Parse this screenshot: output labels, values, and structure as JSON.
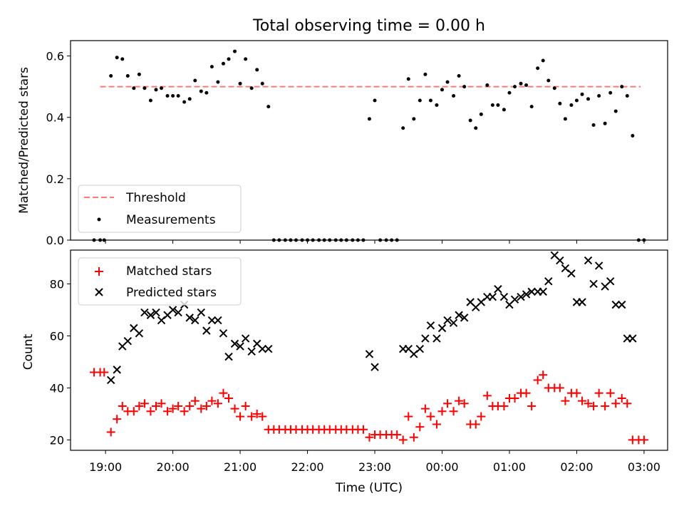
{
  "chart_data": [
    {
      "type": "scatter",
      "title": "Total observing time = 0.00 h",
      "xlabel": "",
      "ylabel": "Matched/Predicted stars",
      "ylim": [
        0,
        0.65
      ],
      "yticks": [
        0.0,
        0.2,
        0.4,
        0.6
      ],
      "ytick_labels": [
        "0.0",
        "0.2",
        "0.4",
        "0.6"
      ],
      "x_range_hours": [
        18.48,
        27.35
      ],
      "x_unit": "hours since 00:00 UTC of start day",
      "threshold": {
        "name": "Threshold",
        "value": 0.5,
        "x_start": 18.92,
        "x_end": 26.95,
        "color": "#ff7777"
      },
      "legend": {
        "placement": "lower left",
        "entries": [
          "Threshold",
          "Measurements"
        ]
      },
      "series": [
        {
          "name": "Measurements",
          "color": "#000000",
          "marker": "dot",
          "x": [
            18.83,
            18.92,
            18.98,
            19.08,
            19.17,
            19.25,
            19.33,
            19.42,
            19.5,
            19.58,
            19.67,
            19.75,
            19.83,
            19.92,
            20.0,
            20.08,
            20.17,
            20.25,
            20.33,
            20.42,
            20.5,
            20.58,
            20.67,
            20.75,
            20.83,
            20.92,
            21.0,
            21.08,
            21.17,
            21.25,
            21.33,
            21.42,
            21.5,
            21.58,
            21.67,
            21.75,
            21.83,
            21.92,
            22.0,
            22.08,
            22.17,
            22.25,
            22.33,
            22.42,
            22.5,
            22.58,
            22.67,
            22.75,
            22.83,
            22.92,
            23.0,
            23.08,
            23.17,
            23.25,
            23.33,
            23.42,
            23.5,
            23.58,
            23.67,
            23.75,
            23.83,
            23.92,
            24.0,
            24.08,
            24.17,
            24.25,
            24.33,
            24.42,
            24.5,
            24.58,
            24.67,
            24.75,
            24.83,
            24.92,
            25.0,
            25.08,
            25.17,
            25.25,
            25.33,
            25.42,
            25.5,
            25.58,
            25.67,
            25.75,
            25.83,
            25.92,
            26.0,
            26.08,
            26.17,
            26.25,
            26.33,
            26.42,
            26.5,
            26.58,
            26.67,
            26.75,
            26.83,
            26.92,
            27.0
          ],
          "y": [
            0.0,
            0.0,
            0.0,
            0.535,
            0.595,
            0.59,
            0.535,
            0.495,
            0.54,
            0.495,
            0.455,
            0.49,
            0.495,
            0.47,
            0.47,
            0.47,
            0.45,
            0.46,
            0.52,
            0.485,
            0.48,
            0.565,
            0.515,
            0.575,
            0.59,
            0.615,
            0.51,
            0.59,
            0.495,
            0.555,
            0.51,
            0.435,
            0.0,
            0.0,
            0.0,
            0.0,
            0.0,
            0.0,
            0.0,
            0.0,
            0.0,
            0.0,
            0.0,
            0.0,
            0.0,
            0.0,
            0.0,
            0.0,
            0.0,
            0.395,
            0.455,
            0.0,
            0.0,
            0.0,
            0.0,
            0.365,
            0.525,
            0.395,
            0.455,
            0.54,
            0.455,
            0.44,
            0.49,
            0.515,
            0.47,
            0.535,
            0.5,
            0.39,
            0.365,
            0.41,
            0.505,
            0.44,
            0.44,
            0.425,
            0.48,
            0.5,
            0.51,
            0.505,
            0.435,
            0.56,
            0.585,
            0.52,
            0.495,
            0.445,
            0.395,
            0.44,
            0.455,
            0.475,
            0.46,
            0.375,
            0.47,
            0.38,
            0.48,
            0.42,
            0.5,
            0.47,
            0.34,
            0.0,
            0.0
          ]
        }
      ]
    },
    {
      "type": "scatter",
      "title": "",
      "xlabel": "Time (UTC)",
      "ylabel": "Count",
      "ylim": [
        16,
        93
      ],
      "yticks": [
        20,
        40,
        60,
        80
      ],
      "ytick_labels": [
        "20",
        "40",
        "60",
        "80"
      ],
      "x_range_hours": [
        18.48,
        27.35
      ],
      "xticks": [
        19,
        20,
        21,
        22,
        23,
        24,
        25,
        26,
        27
      ],
      "xtick_labels": [
        "19:00",
        "20:00",
        "21:00",
        "22:00",
        "23:00",
        "00:00",
        "01:00",
        "02:00",
        "03:00"
      ],
      "legend": {
        "placement": "upper left",
        "entries": [
          "Matched stars",
          "Predicted stars"
        ]
      },
      "series": [
        {
          "name": "Matched stars",
          "color": "#ff0000",
          "marker": "plus",
          "x": [
            18.83,
            18.92,
            18.98,
            19.08,
            19.17,
            19.25,
            19.33,
            19.42,
            19.5,
            19.58,
            19.67,
            19.75,
            19.83,
            19.92,
            20.0,
            20.08,
            20.17,
            20.25,
            20.33,
            20.42,
            20.5,
            20.58,
            20.67,
            20.75,
            20.83,
            20.92,
            21.0,
            21.08,
            21.17,
            21.25,
            21.33,
            21.42,
            21.5,
            21.58,
            21.67,
            21.75,
            21.83,
            21.92,
            22.0,
            22.08,
            22.17,
            22.25,
            22.33,
            22.42,
            22.5,
            22.58,
            22.67,
            22.75,
            22.83,
            22.92,
            23.0,
            23.08,
            23.17,
            23.25,
            23.33,
            23.42,
            23.5,
            23.58,
            23.67,
            23.75,
            23.83,
            23.92,
            24.0,
            24.08,
            24.17,
            24.25,
            24.33,
            24.42,
            24.5,
            24.58,
            24.67,
            24.75,
            24.83,
            24.92,
            25.0,
            25.08,
            25.17,
            25.25,
            25.33,
            25.42,
            25.5,
            25.58,
            25.67,
            25.75,
            25.83,
            25.92,
            26.0,
            26.08,
            26.17,
            26.25,
            26.33,
            26.42,
            26.5,
            26.58,
            26.67,
            26.75,
            26.83,
            26.92,
            27.0
          ],
          "y": [
            46,
            46,
            46,
            23,
            28,
            33,
            31,
            31,
            33,
            34,
            31,
            33,
            34,
            31,
            32,
            33,
            31,
            33,
            35,
            32,
            33,
            35,
            34,
            38,
            36,
            32,
            29,
            33,
            29,
            30,
            29,
            24,
            24,
            24,
            24,
            24,
            24,
            24,
            24,
            24,
            24,
            24,
            24,
            24,
            24,
            24,
            24,
            24,
            24,
            21,
            22,
            22,
            22,
            22,
            22,
            20,
            29,
            21,
            25,
            32,
            29,
            26,
            31,
            34,
            31,
            35,
            34,
            26,
            26,
            29,
            37,
            33,
            33,
            33,
            36,
            36,
            38,
            38,
            33,
            43,
            45,
            40,
            40,
            40,
            35,
            38,
            38,
            35,
            34,
            33,
            38,
            33,
            38,
            34,
            36,
            34,
            20,
            20,
            20
          ]
        },
        {
          "name": "Predicted stars",
          "color": "#000000",
          "marker": "x",
          "x": [
            19.08,
            19.17,
            19.25,
            19.33,
            19.42,
            19.5,
            19.58,
            19.67,
            19.75,
            19.83,
            19.92,
            20.0,
            20.08,
            20.17,
            20.25,
            20.33,
            20.42,
            20.5,
            20.58,
            20.67,
            20.75,
            20.83,
            20.92,
            21.0,
            21.08,
            21.17,
            21.25,
            21.33,
            21.42,
            22.92,
            23.0,
            23.42,
            23.5,
            23.58,
            23.67,
            23.75,
            23.83,
            23.92,
            24.0,
            24.08,
            24.17,
            24.25,
            24.33,
            24.42,
            24.5,
            24.58,
            24.67,
            24.75,
            24.83,
            24.92,
            25.0,
            25.08,
            25.17,
            25.25,
            25.33,
            25.42,
            25.5,
            25.58,
            25.67,
            25.75,
            25.83,
            25.92,
            26.0,
            26.08,
            26.17,
            26.25,
            26.33,
            26.42,
            26.5,
            26.58,
            26.67,
            26.75,
            26.83
          ],
          "y": [
            43,
            47,
            56,
            58,
            63,
            61,
            69,
            68,
            69,
            66,
            68,
            70,
            69,
            72,
            67,
            66,
            69,
            62,
            66,
            66,
            61,
            52,
            57,
            56,
            59,
            54,
            57,
            55,
            55,
            53,
            48,
            55,
            55,
            53,
            55,
            59,
            64,
            59,
            63,
            66,
            65,
            68,
            67,
            73,
            71,
            73,
            75,
            75,
            78,
            75,
            72,
            74,
            75,
            76,
            77,
            77,
            77,
            81,
            91,
            89,
            86,
            84,
            73,
            73,
            89,
            80,
            87,
            79,
            81,
            72,
            72,
            59,
            59
          ]
        }
      ]
    }
  ]
}
